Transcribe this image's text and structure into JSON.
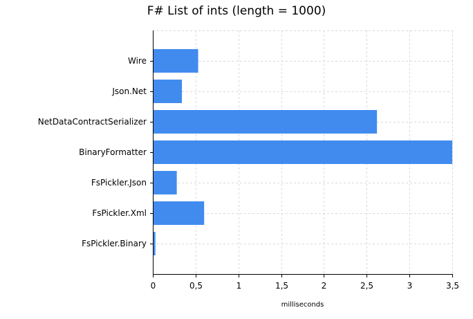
{
  "chart_data": {
    "type": "bar",
    "orientation": "horizontal",
    "title": "F# List of ints (length = 1000)",
    "xlabel": "milliseconds",
    "ylabel": "",
    "categories": [
      "Wire",
      "Json.Net",
      "NetDataContractSerializer",
      "BinaryFormatter",
      "FsPickler.Json",
      "FsPickler.Xml",
      "FsPickler.Binary"
    ],
    "values": [
      0.53,
      0.34,
      2.62,
      3.5,
      0.28,
      0.6,
      0.03
    ],
    "xlim": [
      0,
      3.5
    ],
    "xticks": [
      0,
      0.5,
      1,
      1.5,
      2,
      2.5,
      3,
      3.5
    ],
    "xtick_labels": [
      "0",
      "0,5",
      "1",
      "1,5",
      "2",
      "2,5",
      "3",
      "3,5"
    ],
    "grid": true,
    "legend": "none",
    "bar_color": "#418BEF",
    "grid_color": "#D9D9D9"
  }
}
